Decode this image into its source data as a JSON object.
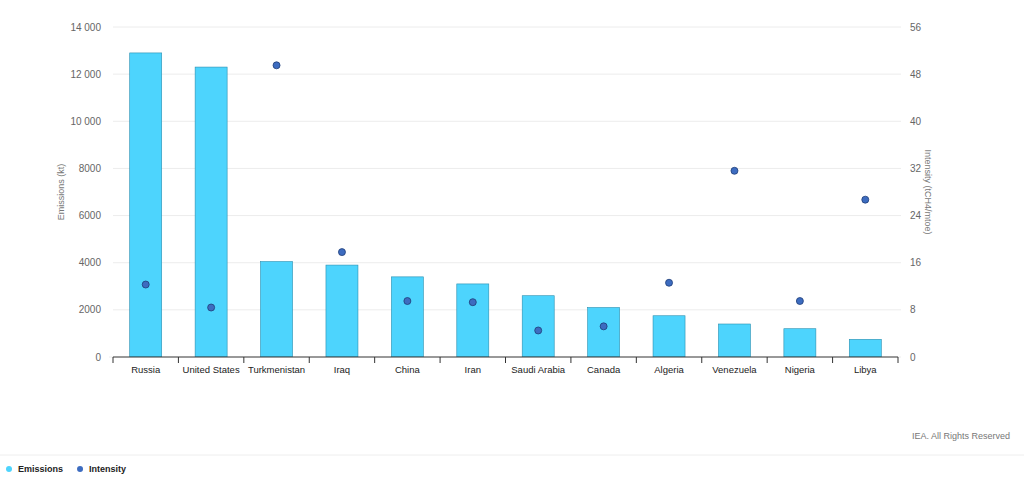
{
  "chart_data": {
    "type": "bar",
    "categories": [
      "Russia",
      "United States",
      "Turkmenistan",
      "Iraq",
      "China",
      "Iran",
      "Saudi Arabia",
      "Canada",
      "Algeria",
      "Venezuela",
      "Nigeria",
      "Libya"
    ],
    "series": [
      {
        "name": "Emissions",
        "type": "bar",
        "color": "#4dd4fd",
        "values": [
          12900,
          12300,
          4050,
          3900,
          3400,
          3100,
          2600,
          2100,
          1750,
          1400,
          1200,
          750
        ]
      },
      {
        "name": "Intensity",
        "type": "scatter",
        "axis": "y2",
        "color": "#3d6cc0",
        "marker": "circle",
        "values": [
          12.3,
          8.4,
          49.5,
          17.8,
          9.5,
          9.3,
          4.5,
          5.2,
          12.6,
          31.6,
          9.5,
          26.7
        ]
      }
    ],
    "y_label": "Emissions (kt)",
    "y2_label": "Intensity (tCH4/mtoe)",
    "source": "IEA. All Rights Reserved",
    "ylim": [
      0,
      14000
    ],
    "yticks": [
      0,
      2000,
      4000,
      6000,
      8000,
      {
        "value": 10000,
        "label": "10 000"
      },
      {
        "value": 12000,
        "label": "12 000"
      },
      {
        "value": 14000,
        "label": "14 000"
      }
    ],
    "y2lim": [
      0,
      56
    ],
    "y2ticks": [
      0,
      8,
      16,
      24,
      32,
      40,
      48,
      56
    ],
    "grid": true,
    "legend": "bottom-left"
  }
}
